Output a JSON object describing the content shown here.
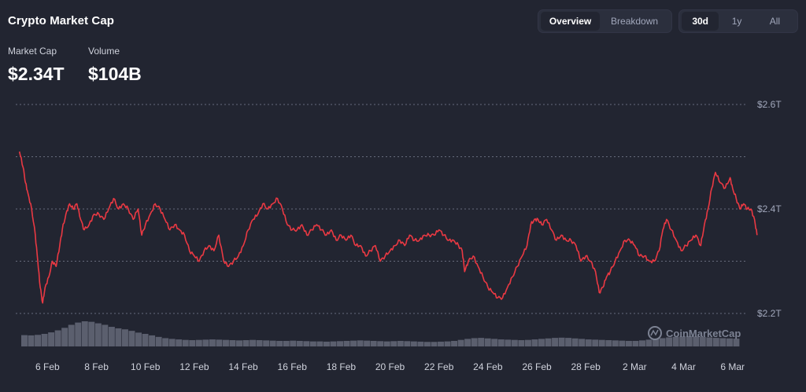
{
  "title": "Crypto Market Cap",
  "stats": [
    {
      "label": "Market Cap",
      "value": "$2.34T"
    },
    {
      "label": "Volume",
      "value": "$104B"
    }
  ],
  "view_toggle": {
    "options": [
      "Overview",
      "Breakdown"
    ],
    "selected": "Overview"
  },
  "range_toggle": {
    "options": [
      "30d",
      "1y",
      "All"
    ],
    "selected": "30d"
  },
  "watermark": "CoinMarketCap",
  "colors": {
    "line": "#ea3943",
    "volume": "#a1a7bb",
    "grid": "#a1a7bb",
    "background": "#222531"
  },
  "chart_data": {
    "type": "line",
    "x_ticks": [
      "6 Feb",
      "8 Feb",
      "10 Feb",
      "12 Feb",
      "14 Feb",
      "16 Feb",
      "18 Feb",
      "20 Feb",
      "22 Feb",
      "24 Feb",
      "26 Feb",
      "28 Feb",
      "2 Mar",
      "4 Mar",
      "6 Mar"
    ],
    "y_ticks": [
      {
        "value": 2.2,
        "label": "$2.2T"
      },
      {
        "value": 2.4,
        "label": "$2.4T"
      },
      {
        "value": 2.6,
        "label": "$2.6T"
      }
    ],
    "ylim": [
      2.2,
      2.6
    ],
    "xlim": [
      4.7,
      34.3
    ],
    "grid": true,
    "series": [
      {
        "values": [
          [
            4.85,
            2.51
          ],
          [
            5.0,
            2.48
          ],
          [
            5.1,
            2.45
          ],
          [
            5.2,
            2.43
          ],
          [
            5.35,
            2.4
          ],
          [
            5.5,
            2.35
          ],
          [
            5.6,
            2.3
          ],
          [
            5.7,
            2.25
          ],
          [
            5.8,
            2.22
          ],
          [
            5.9,
            2.25
          ],
          [
            6.05,
            2.27
          ],
          [
            6.2,
            2.3
          ],
          [
            6.35,
            2.29
          ],
          [
            6.5,
            2.33
          ],
          [
            6.6,
            2.36
          ],
          [
            6.75,
            2.39
          ],
          [
            6.9,
            2.41
          ],
          [
            7.05,
            2.4
          ],
          [
            7.2,
            2.41
          ],
          [
            7.35,
            2.38
          ],
          [
            7.5,
            2.36
          ],
          [
            7.7,
            2.37
          ],
          [
            7.9,
            2.39
          ],
          [
            8.1,
            2.39
          ],
          [
            8.3,
            2.38
          ],
          [
            8.5,
            2.4
          ],
          [
            8.7,
            2.42
          ],
          [
            8.9,
            2.4
          ],
          [
            9.1,
            2.41
          ],
          [
            9.3,
            2.4
          ],
          [
            9.5,
            2.38
          ],
          [
            9.7,
            2.4
          ],
          [
            9.85,
            2.35
          ],
          [
            10.0,
            2.37
          ],
          [
            10.2,
            2.39
          ],
          [
            10.4,
            2.41
          ],
          [
            10.6,
            2.4
          ],
          [
            10.8,
            2.38
          ],
          [
            11.0,
            2.36
          ],
          [
            11.2,
            2.37
          ],
          [
            11.4,
            2.36
          ],
          [
            11.6,
            2.35
          ],
          [
            11.8,
            2.32
          ],
          [
            12.0,
            2.31
          ],
          [
            12.2,
            2.3
          ],
          [
            12.4,
            2.32
          ],
          [
            12.6,
            2.33
          ],
          [
            12.8,
            2.32
          ],
          [
            13.0,
            2.35
          ],
          [
            13.2,
            2.3
          ],
          [
            13.4,
            2.29
          ],
          [
            13.6,
            2.3
          ],
          [
            13.8,
            2.31
          ],
          [
            14.0,
            2.33
          ],
          [
            14.2,
            2.36
          ],
          [
            14.4,
            2.38
          ],
          [
            14.6,
            2.39
          ],
          [
            14.8,
            2.41
          ],
          [
            15.0,
            2.4
          ],
          [
            15.2,
            2.41
          ],
          [
            15.4,
            2.42
          ],
          [
            15.6,
            2.4
          ],
          [
            15.8,
            2.37
          ],
          [
            16.0,
            2.36
          ],
          [
            16.2,
            2.36
          ],
          [
            16.4,
            2.37
          ],
          [
            16.6,
            2.35
          ],
          [
            16.8,
            2.36
          ],
          [
            17.0,
            2.37
          ],
          [
            17.2,
            2.36
          ],
          [
            17.4,
            2.35
          ],
          [
            17.6,
            2.36
          ],
          [
            17.8,
            2.34
          ],
          [
            18.0,
            2.35
          ],
          [
            18.2,
            2.34
          ],
          [
            18.4,
            2.35
          ],
          [
            18.6,
            2.33
          ],
          [
            18.8,
            2.33
          ],
          [
            19.0,
            2.31
          ],
          [
            19.2,
            2.32
          ],
          [
            19.4,
            2.33
          ],
          [
            19.6,
            2.3
          ],
          [
            19.8,
            2.31
          ],
          [
            20.0,
            2.32
          ],
          [
            20.2,
            2.33
          ],
          [
            20.4,
            2.34
          ],
          [
            20.6,
            2.33
          ],
          [
            20.8,
            2.35
          ],
          [
            21.0,
            2.34
          ],
          [
            21.2,
            2.34
          ],
          [
            21.4,
            2.35
          ],
          [
            21.6,
            2.35
          ],
          [
            21.8,
            2.35
          ],
          [
            22.0,
            2.36
          ],
          [
            22.2,
            2.35
          ],
          [
            22.4,
            2.34
          ],
          [
            22.6,
            2.34
          ],
          [
            22.8,
            2.33
          ],
          [
            22.95,
            2.32
          ],
          [
            23.05,
            2.28
          ],
          [
            23.2,
            2.3
          ],
          [
            23.4,
            2.31
          ],
          [
            23.6,
            2.29
          ],
          [
            23.8,
            2.27
          ],
          [
            24.0,
            2.25
          ],
          [
            24.2,
            2.24
          ],
          [
            24.4,
            2.23
          ],
          [
            24.6,
            2.23
          ],
          [
            24.8,
            2.25
          ],
          [
            25.0,
            2.27
          ],
          [
            25.2,
            2.29
          ],
          [
            25.4,
            2.31
          ],
          [
            25.6,
            2.33
          ],
          [
            25.75,
            2.37
          ],
          [
            25.9,
            2.38
          ],
          [
            26.05,
            2.38
          ],
          [
            26.2,
            2.37
          ],
          [
            26.4,
            2.38
          ],
          [
            26.6,
            2.36
          ],
          [
            26.8,
            2.34
          ],
          [
            27.0,
            2.35
          ],
          [
            27.2,
            2.34
          ],
          [
            27.4,
            2.34
          ],
          [
            27.6,
            2.33
          ],
          [
            27.8,
            2.3
          ],
          [
            28.0,
            2.31
          ],
          [
            28.2,
            2.3
          ],
          [
            28.4,
            2.28
          ],
          [
            28.55,
            2.24
          ],
          [
            28.7,
            2.25
          ],
          [
            28.85,
            2.27
          ],
          [
            29.0,
            2.28
          ],
          [
            29.2,
            2.3
          ],
          [
            29.4,
            2.32
          ],
          [
            29.6,
            2.34
          ],
          [
            29.8,
            2.34
          ],
          [
            30.0,
            2.33
          ],
          [
            30.2,
            2.31
          ],
          [
            30.4,
            2.31
          ],
          [
            30.6,
            2.3
          ],
          [
            30.8,
            2.3
          ],
          [
            31.0,
            2.32
          ],
          [
            31.15,
            2.36
          ],
          [
            31.3,
            2.38
          ],
          [
            31.5,
            2.36
          ],
          [
            31.7,
            2.34
          ],
          [
            31.9,
            2.32
          ],
          [
            32.1,
            2.33
          ],
          [
            32.3,
            2.34
          ],
          [
            32.5,
            2.35
          ],
          [
            32.7,
            2.33
          ],
          [
            32.85,
            2.37
          ],
          [
            33.0,
            2.4
          ],
          [
            33.15,
            2.44
          ],
          [
            33.3,
            2.47
          ],
          [
            33.5,
            2.45
          ],
          [
            33.7,
            2.44
          ],
          [
            33.9,
            2.46
          ],
          [
            34.0,
            2.44
          ],
          [
            34.15,
            2.42
          ],
          [
            34.3,
            2.4
          ],
          [
            34.45,
            2.41
          ],
          [
            34.6,
            2.4
          ],
          [
            34.75,
            2.4
          ],
          [
            34.9,
            2.38
          ],
          [
            35.0,
            2.35
          ]
        ]
      }
    ],
    "volume": [
      0.45,
      0.44,
      0.46,
      0.5,
      0.56,
      0.64,
      0.74,
      0.86,
      0.95,
      1.0,
      0.98,
      0.92,
      0.86,
      0.78,
      0.72,
      0.68,
      0.62,
      0.55,
      0.5,
      0.44,
      0.38,
      0.33,
      0.3,
      0.28,
      0.26,
      0.25,
      0.26,
      0.27,
      0.28,
      0.27,
      0.26,
      0.25,
      0.24,
      0.25,
      0.26,
      0.25,
      0.24,
      0.23,
      0.22,
      0.22,
      0.23,
      0.22,
      0.21,
      0.2,
      0.2,
      0.19,
      0.2,
      0.21,
      0.22,
      0.23,
      0.24,
      0.23,
      0.22,
      0.21,
      0.2,
      0.21,
      0.22,
      0.21,
      0.2,
      0.19,
      0.18,
      0.18,
      0.19,
      0.2,
      0.22,
      0.26,
      0.3,
      0.33,
      0.34,
      0.32,
      0.3,
      0.28,
      0.27,
      0.26,
      0.25,
      0.26,
      0.28,
      0.3,
      0.32,
      0.34,
      0.35,
      0.34,
      0.32,
      0.3,
      0.28,
      0.27,
      0.26,
      0.25,
      0.24,
      0.23,
      0.22,
      0.22,
      0.24,
      0.27,
      0.3,
      0.33,
      0.36,
      0.38,
      0.4,
      0.41,
      0.4,
      0.38,
      0.36,
      0.34,
      0.33,
      0.32,
      0.31
    ]
  }
}
